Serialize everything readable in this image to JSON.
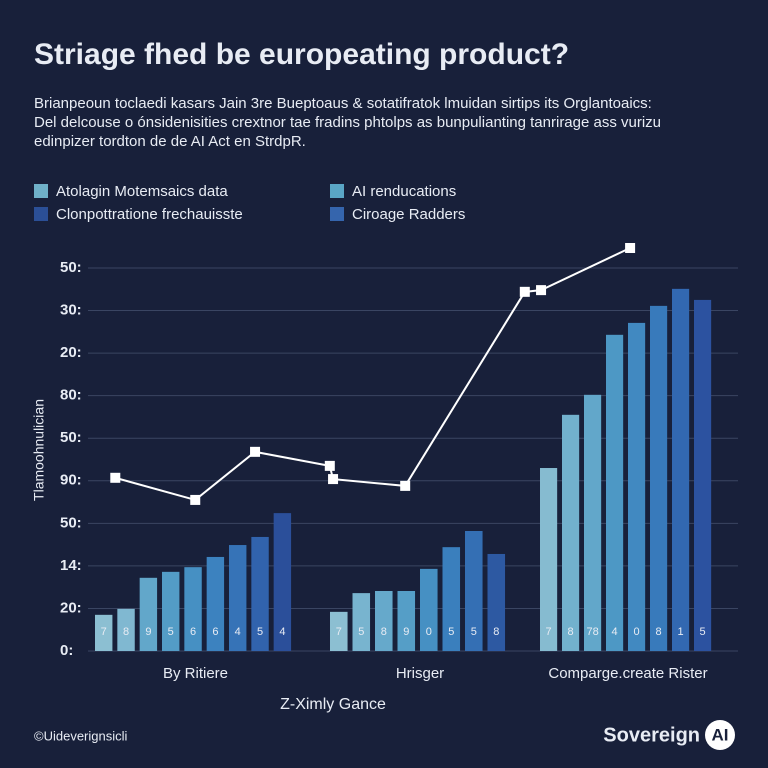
{
  "chart_data": {
    "type": "bar",
    "title": "Striage fhed be europeating product?",
    "subtitle": [
      "Brianpeoun toclaedi kasars Jain 3re Bueptoaus & sotatifratok lmuidan sirtips its Orglantoaics:",
      "Del delcouse o ónsidenisities crextnor tae fradins phtolps as bunpulianting tanrirage ass vurizu",
      "edinpizer tordton de de AI Act en StrdpR."
    ],
    "legend": [
      {
        "name": "Atolagin Motemsaics data",
        "color": "#6fb0c9"
      },
      {
        "name": "AI renducations",
        "color": "#5aa6c6"
      },
      {
        "name": "Clonpottratione frechauisste",
        "color": "#2b4f96"
      },
      {
        "name": "Ciroage Radders",
        "color": "#3565ad"
      }
    ],
    "y_label": "Tlamoohnulician",
    "x_label": "Z-Ximly Gance",
    "ylim": [
      0,
      9
    ],
    "yticks": [
      {
        "value": 9,
        "label": "50:"
      },
      {
        "value": 8,
        "label": "30:"
      },
      {
        "value": 7,
        "label": "20:"
      },
      {
        "value": 6,
        "label": "80:"
      },
      {
        "value": 5,
        "label": "50:"
      },
      {
        "value": 4,
        "label": "90:"
      },
      {
        "value": 3,
        "label": "50:"
      },
      {
        "value": 2,
        "label": "14:"
      },
      {
        "value": 1,
        "label": "20:"
      },
      {
        "value": 0,
        "label": "0:"
      }
    ],
    "grid": true,
    "groups": [
      {
        "name": "By Ritiere",
        "values": [
          0.85,
          0.99,
          1.72,
          1.86,
          1.97,
          2.21,
          2.49,
          2.68,
          3.24
        ],
        "bar_labels": [
          "7",
          "8",
          "9",
          "5",
          "6",
          "6",
          "4",
          "5",
          "4"
        ],
        "colors": [
          "#8cbfd2",
          "#80b8d1",
          "#62a7ca",
          "#539cc6",
          "#4690c3",
          "#3c82bf",
          "#3673b7",
          "#3163ad",
          "#2b4f9a"
        ]
      },
      {
        "name": "Hrisger",
        "values": [
          0.92,
          1.36,
          1.41,
          1.41,
          1.93,
          2.44,
          2.82,
          2.28
        ],
        "bar_labels": [
          "7",
          "5",
          "8",
          "9",
          "0",
          "5",
          "5",
          "8"
        ],
        "colors": [
          "#8cbfd2",
          "#78b4cf",
          "#66a9cb",
          "#559ec7",
          "#4690c3",
          "#3a7fbd",
          "#346fb4",
          "#2d59a2"
        ]
      },
      {
        "name": "Comparge.create Rister",
        "values": [
          4.3,
          5.55,
          6.02,
          7.43,
          7.71,
          8.11,
          8.51,
          8.25
        ],
        "bar_labels": [
          "7",
          "8",
          "78",
          "4",
          "0",
          "8",
          "1",
          "5"
        ],
        "colors": [
          "#86bbd0",
          "#72b1cd",
          "#62a7ca",
          "#4d98c5",
          "#4189c1",
          "#387abb",
          "#3268b1",
          "#2c52a0"
        ]
      }
    ],
    "line": {
      "color": "#ffffff",
      "xlim": [
        0,
        100
      ],
      "x": [
        4.2,
        16.5,
        25.7,
        37.2,
        37.7,
        48.8,
        67.2,
        69.7,
        83.4
      ],
      "values": [
        4.07,
        3.55,
        4.68,
        4.35,
        4.04,
        3.88,
        8.44,
        8.48,
        9.47
      ]
    },
    "footer": "©Uideverignsicli",
    "brand": "Sovereign",
    "brand_badge": "AI"
  }
}
